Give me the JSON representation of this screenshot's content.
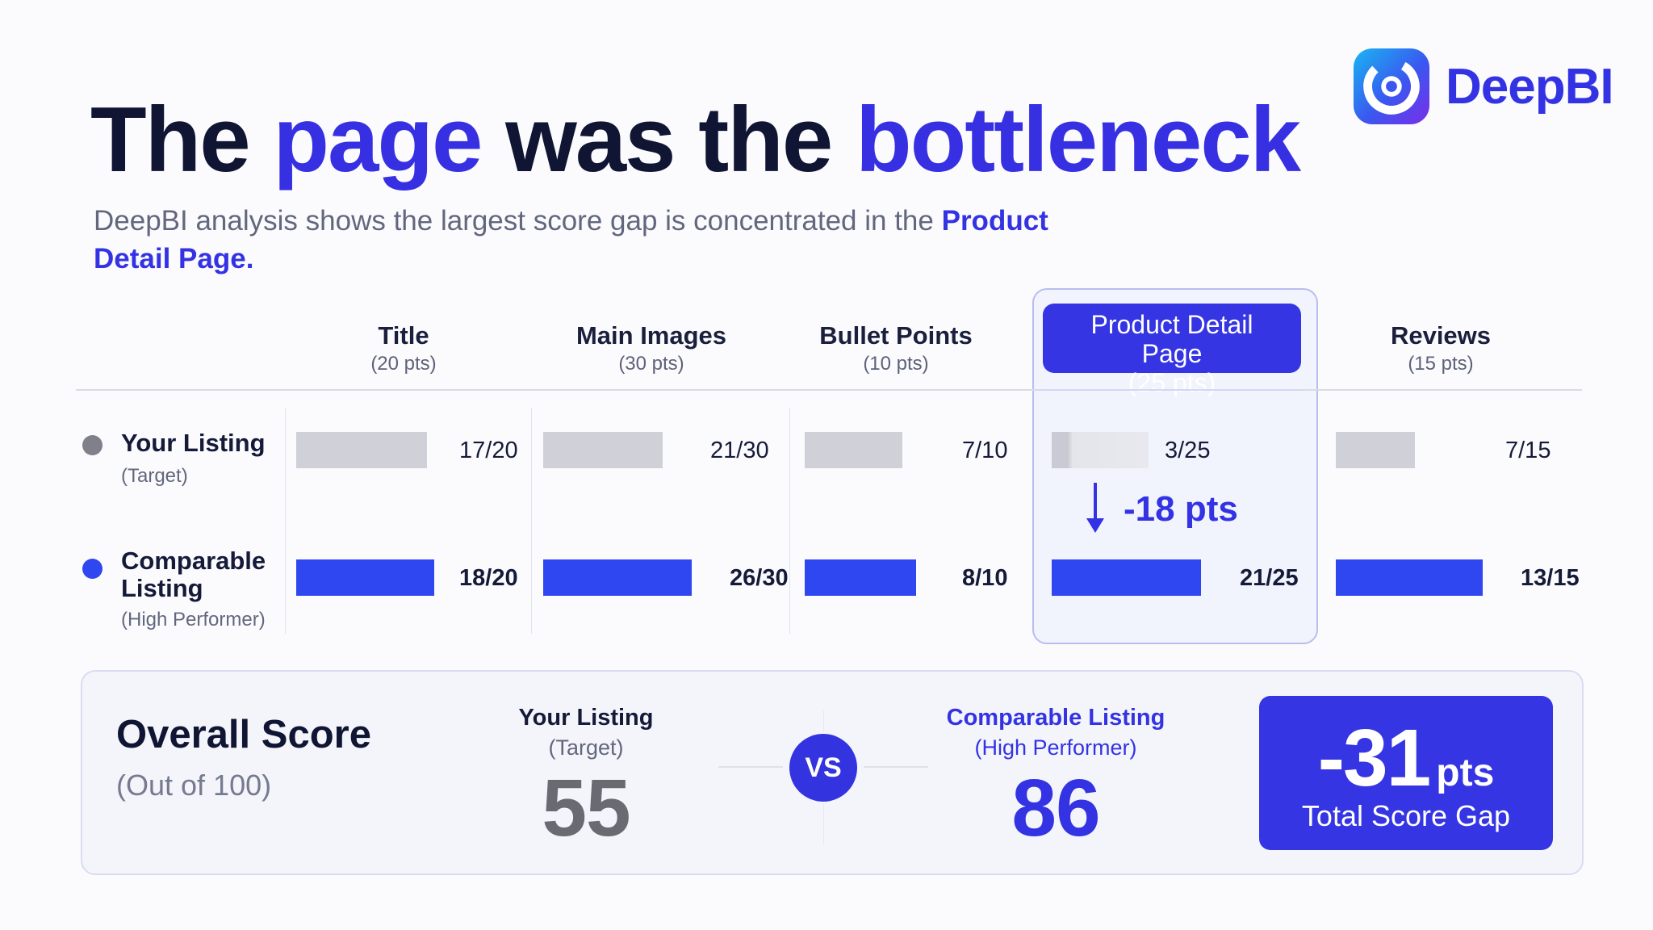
{
  "brand": {
    "name": "DeepBI",
    "logo_icon": "deepbi-logo-icon",
    "color": "#3433e4"
  },
  "headline": {
    "part1": "The ",
    "highlight1": "page",
    "part2": " was the ",
    "highlight2": "bottleneck"
  },
  "subtitle": {
    "text": "DeepBI analysis shows the largest score gap is concentrated in the ",
    "highlight": "Product Detail Page."
  },
  "rows": {
    "target": {
      "label": "Your Listing",
      "sublabel": "(Target)",
      "color": "#cfd0d8"
    },
    "comparable": {
      "label1": "Comparable",
      "label2": "Listing",
      "sublabel": "(High Performer)",
      "color": "#2f47f0"
    }
  },
  "chart_data": {
    "type": "bar",
    "categories": [
      {
        "name": "Title",
        "max_label": "(20 pts)",
        "max": 20
      },
      {
        "name": "Main Images",
        "max_label": "(30 pts)",
        "max": 30
      },
      {
        "name": "Bullet Points",
        "max_label": "(10 pts)",
        "max": 10
      },
      {
        "name": "Product Detail Page",
        "max_label": "(25 pts)",
        "max": 25
      },
      {
        "name": "Reviews",
        "max_label": "(15 pts)",
        "max": 15
      }
    ],
    "series": [
      {
        "name": "Your Listing",
        "values": [
          17,
          21,
          7,
          3,
          7
        ],
        "labels": [
          "17/20",
          "21/30",
          "7/10",
          "3/25",
          "7/15"
        ]
      },
      {
        "name": "Comparable Listing",
        "values": [
          18,
          26,
          8,
          21,
          13
        ],
        "labels": [
          "18/20",
          "26/30",
          "8/10",
          "21/25",
          "13/15"
        ]
      }
    ],
    "highlight_category": "Product Detail Page",
    "annotation": {
      "category": "Product Detail Page",
      "text": "-18 pts",
      "icon": "arrow-down-icon"
    }
  },
  "summary": {
    "title": "Overall Score",
    "subtitle": "(Out of 100)",
    "target": {
      "label": "Your Listing",
      "sublabel": "(Target)",
      "score": "55"
    },
    "vs": "VS",
    "comparable": {
      "label": "Comparable Listing",
      "sublabel": "(High Performer)",
      "score": "86"
    },
    "gap": {
      "value": "-31",
      "unit": "pts",
      "label": "Total Score Gap"
    }
  }
}
